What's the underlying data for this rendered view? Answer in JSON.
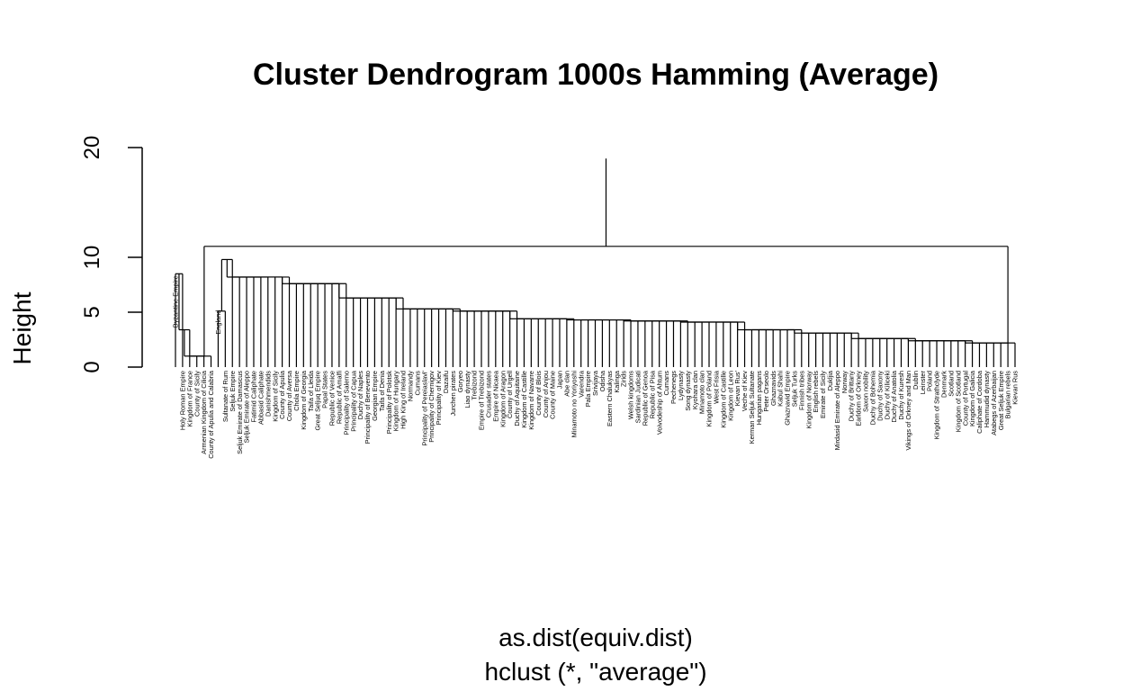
{
  "chart_data": {
    "type": "dendrogram",
    "title": "Cluster Dendrogram 1000s Hamming (Average)",
    "xlabel": "as.dist(equiv.dist)",
    "sub": "hclust (*, \"average\")",
    "ylabel": "Height",
    "ylim": [
      0,
      20
    ],
    "yticks": [
      0,
      5,
      10,
      20
    ],
    "labels": [
      "Byzantine Empire",
      "Holy Roman Empire",
      "Kingdom of France",
      "County of Sicily",
      "Armenian Kingdom of Cilicia",
      "County of Apulia and Calabria",
      "England",
      "Sultanate of Rum",
      "Seljuk Empire",
      "Seljuk Emirate of Damascus",
      "Seljuk Emirate of Aleppo",
      "Fatimid Caliphate",
      "Abbasid Caliphate",
      "Danishmendids",
      "Kingdom of Sicily",
      "County of Apulia",
      "County of Aversa",
      "Chola Empire",
      "Kingdom of Georgia",
      "Taifa of Lleida",
      "Great Seljuq Empire",
      "Papal States",
      "Republic of Venice",
      "Republic of Amalfi",
      "Principality of Salerno",
      "Principality of Capua",
      "Duchy of Naples",
      "Principality of Benevento",
      "Georgian Empire",
      "Taifa of Denia",
      "Principality of Polotsk",
      "Kingdom of Hungary",
      "High King of Ireland",
      "Normandy",
      "Cumans",
      "Principality of Pereiaslavl'",
      "Principality of Chernigov",
      "Principality of Kiev",
      "Dazaifu",
      "Jurchen pirates",
      "Goryeo",
      "Liao dynasty",
      "Trebizond",
      "Empire of Trebizond",
      "Crusader states",
      "Empire of Nicaea",
      "Kingdom of Aragon",
      "County of Urgell",
      "Duchy of Aquitaine",
      "Kingdom of Castille",
      "Kingdom of Navarre",
      "County of Blois",
      "County of Anjou",
      "County of Maine",
      "Japan",
      "Abe clan",
      "Minamoto no Yoriyoshi",
      "Varendra",
      "Pala Empire",
      "Srivijaya",
      "Odisha",
      "Eastern Chalukyas",
      "Kalinga",
      "Zirids",
      "Welsh kingdoms",
      "Sardinian Judicati",
      "Republic of Genoa",
      "Republic of Pisa",
      "Voivodeship of Ahtum",
      "Cumans",
      "Pechenegs",
      "Lydynasty",
      "Song dynasty",
      "Kyohara clan",
      "Minamoto clan",
      "Kingdom of Poland",
      "West Frisia",
      "Kingdom of Castille",
      "Kingdom of Leon",
      "Kievan Rus'",
      "Veche of Kiev",
      "Kerman Seljuk Sultanate",
      "Hungarian pagans",
      "Peter Orseolo",
      "Ghaznavids",
      "Kabul Shahi",
      "Ghaznavid Empire",
      "Seljuk Turks",
      "Finnish tribes",
      "Kingdom of Norway",
      "English rebels",
      "Emirate of Sicily",
      "Dukljia",
      "Mirdasid Emirate of Aleppo",
      "Norway",
      "Duchy of Brittany",
      "Earldom of Orkney",
      "Saxon nobility",
      "Duchy of Bohemia",
      "Duchy of Saxony",
      "Duchy of Kiliceki",
      "Duchy of Anatolia",
      "Duchy of Kuresh",
      "Vikings of Orkney and Man",
      "Dublin",
      "Leinster",
      "Poland",
      "Kingdom of Strathclyde",
      "Denmark",
      "Scotland",
      "Kingdom of Scotland",
      "County of Portugal",
      "Kingdom of Galicia",
      "Caliphate of Cordoba",
      "Hammudid dynasty",
      "Atabegs of Azerbaijan",
      "Great Seljuk Empire",
      "Bulgarian rebels",
      "Kievan Rus"
    ],
    "tree": [
      [
        [
          [
            [
              [
                [
                  "Byzantine Empire",
                  "Holy Roman Empire"
                ],
                "Kingdom of France"
              ],
              "County of Sicily"
            ],
            "Armenian Kingdom of Cilicia"
          ],
          "County of Apulia and Calabria"
        ],
        [
          "England",
          "Sultanate of Rum"
        ]
      ],
      [
        "Seljuk Empire",
        [
          "Seljuk Emirate of Damascus",
          "Seljuk Emirate of Aleppo"
        ]
      ],
      [
        "Fatimid Caliphate",
        "Abbasid Caliphate"
      ],
      "Danishmendids",
      [
        "Kingdom of Sicily",
        "County of Apulia"
      ],
      "County of Aversa",
      [
        "Chola Empire",
        "Kingdom of Georgia"
      ],
      "Taifa of Lleida",
      "Great Seljuq Empire",
      "Papal States",
      "Republic of Venice",
      [
        "Republic of Amalfi",
        "Principality of Salerno"
      ],
      [
        "Principality of Capua",
        "Duchy of Naples"
      ],
      "Principality of Benevento",
      "Georgian Empire",
      "Taifa of Denia",
      "Principality of Polotsk",
      "Kingdom of Hungary",
      "High King of Ireland",
      "Normandy",
      "Cumans",
      [
        "Principality of Pereiaslavl'",
        "Principality of Chernigov"
      ],
      "Principality of Kiev",
      "Dazaifu",
      [
        "Jurchen pirates",
        "Goryeo"
      ],
      "Liao dynasty",
      "Trebizond",
      [
        "Empire of Trebizond",
        "Crusader states"
      ],
      "Empire of Nicaea",
      [
        "Kingdom of Aragon",
        "County of Urgell"
      ],
      [
        "Duchy of Aquitaine",
        "Kingdom of Castille"
      ],
      "Kingdom of Navarre",
      [
        "County of Blois",
        "County of Anjou"
      ],
      "County of Maine",
      [
        "Japan",
        "Abe clan"
      ],
      "Minamoto no Yoriyoshi",
      "Varendra",
      [
        "Pala Empire",
        "Srivijaya"
      ],
      [
        "Odisha",
        "Eastern Chalukyas"
      ],
      "Kalinga",
      [
        "Zirids",
        "Welsh kingdoms"
      ],
      [
        "Sardinian Judicati",
        "Republic of Genoa"
      ],
      [
        "Republic of Pisa",
        "Voivodeship of Ahtum"
      ],
      [
        "Cumans",
        "Pechenegs"
      ],
      [
        "Lydynasty",
        "Song dynasty"
      ],
      [
        "Kyohara clan",
        "Minamoto clan"
      ],
      [
        "Kingdom of Poland",
        "West Frisia"
      ],
      [
        "Kingdom of Castille",
        "Kingdom of Leon"
      ],
      [
        "Kievan Rus'",
        "Veche of Kiev"
      ],
      [
        "Kerman Seljuk Sultanate",
        "Hungarian pagans"
      ],
      [
        "Peter Orseolo",
        "Ghaznavids"
      ],
      [
        "Kabul Shahi",
        "Ghaznavid Empire"
      ],
      [
        "Seljuk Turks",
        "Finnish tribes"
      ],
      [
        "Kingdom of Norway",
        "English rebels"
      ],
      "Emirate of Sicily",
      "Dukljia",
      [
        "Mirdasid Emirate of Aleppo",
        "Norway"
      ],
      [
        "Duchy of Brittany",
        "Earldom of Orkney"
      ],
      [
        "Saxon nobility",
        "Duchy of Bohemia"
      ],
      [
        "Duchy of Saxony",
        "Duchy of Kiliceki"
      ],
      [
        "Duchy of Anatolia",
        "Duchy of Kuresh"
      ],
      [
        "Vikings of Orkney and Man",
        "Dublin"
      ],
      [
        "Leinster",
        "Poland"
      ],
      [
        "Kingdom of Strathclyde",
        "Denmark"
      ],
      [
        "Scotland",
        "Kingdom of Scotland"
      ],
      [
        "County of Portugal",
        "Kingdom of Galicia"
      ],
      [
        "Caliphate of Cordoba",
        "Hammudid dynasty"
      ],
      [
        "Atabegs of Azerbaijan",
        "Great Seljuk Empire"
      ],
      [
        "Bulgarian rebels",
        "Kievan Rus"
      ]
    ],
    "heights": {
      "root": 19.0,
      "top": 11.0,
      "left": 8.5,
      "right": 9.8,
      "merges": [
        8.2,
        7.6,
        6.3,
        5.3,
        5.1,
        4.4,
        4.3,
        4.2,
        4.1,
        3.4,
        3.1,
        2.6,
        2.4,
        2.2,
        2.0,
        1.9
      ]
    }
  }
}
